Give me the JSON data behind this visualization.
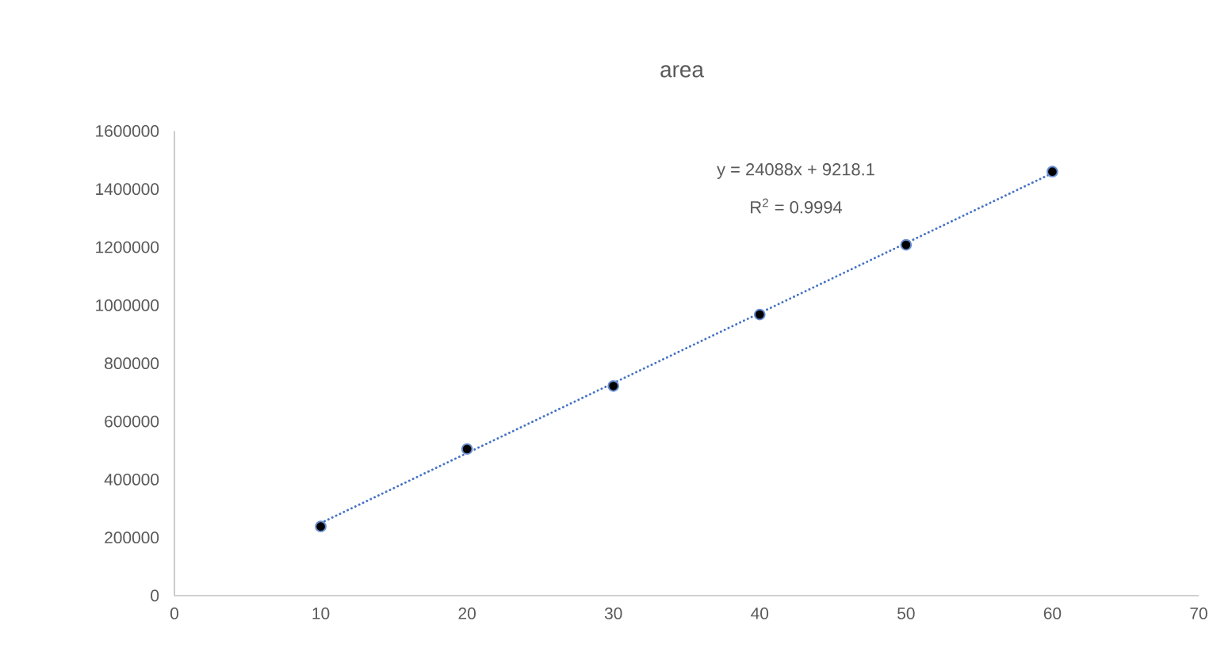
{
  "chart_data": {
    "type": "scatter",
    "title": "area",
    "x": [
      10,
      20,
      30,
      40,
      50,
      60
    ],
    "series": [
      {
        "color": "#000000",
        "marker": "circle",
        "values": [
          238000,
          505000,
          722000,
          968000,
          1208000,
          1460000
        ]
      },
      {
        "type": "line",
        "color": "#4472c4",
        "line_style": "dotted",
        "marker": "none",
        "x": [
          10,
          60
        ],
        "values": [
          250000,
          1455000
        ]
      }
    ],
    "xlim": [
      0,
      70
    ],
    "xticks": [
      0,
      10,
      20,
      30,
      40,
      50,
      60,
      70
    ],
    "ylim": [
      0,
      1600000
    ],
    "yticks": [
      0,
      200000,
      400000,
      600000,
      800000,
      1000000,
      1200000,
      1400000,
      1600000
    ],
    "grid": false,
    "annotations": [
      "y = 24088x + 9218.1",
      "R$^{2}$ = 0.9994"
    ]
  }
}
